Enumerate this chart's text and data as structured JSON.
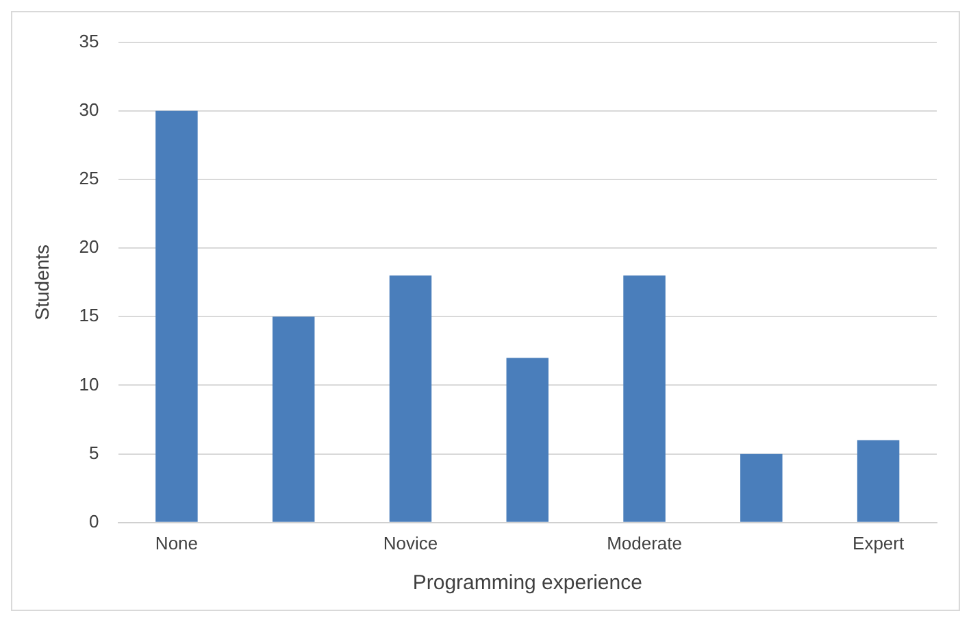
{
  "chart_data": {
    "type": "bar",
    "xlabel": "Programming experience",
    "ylabel": "Students",
    "categories": [
      "None",
      null,
      "Novice",
      null,
      "Moderate",
      null,
      "Expert"
    ],
    "values": [
      30,
      15,
      18,
      12,
      18,
      5,
      6
    ],
    "color": "#4a7ebb",
    "ylim": [
      0,
      35
    ],
    "yticks": [
      0,
      5,
      10,
      15,
      20,
      25,
      30,
      35
    ],
    "grid": "y",
    "legend": false
  }
}
